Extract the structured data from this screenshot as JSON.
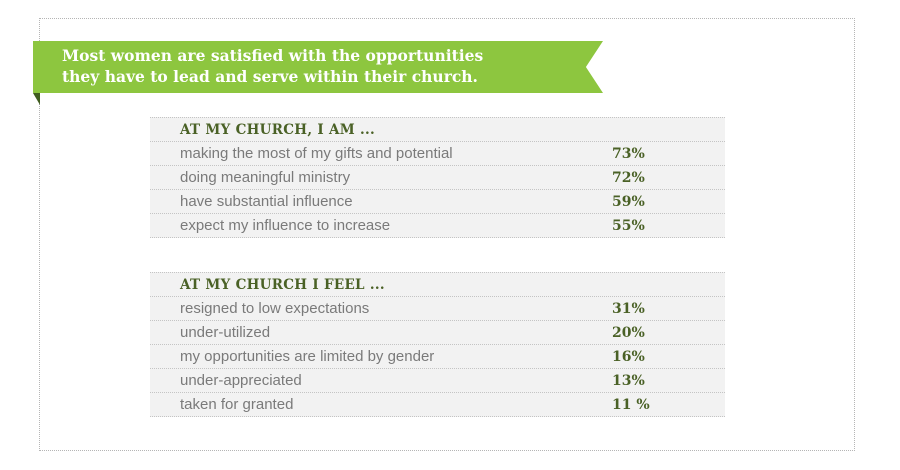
{
  "banner": {
    "text": "Most women are satisfied with the opportunities\nthey have to lead and serve within their church.",
    "color": "#8dc63f"
  },
  "chart_data": {
    "type": "table",
    "accent_color": "#4a6126",
    "tables": [
      {
        "header": "AT MY CHURCH, I AM ...",
        "rows": [
          {
            "label": "making the most of my gifts and potential",
            "value": "73%"
          },
          {
            "label": "doing meaningful ministry",
            "value": "72%"
          },
          {
            "label": "have substantial influence",
            "value": "59%"
          },
          {
            "label": "expect my influence to increase",
            "value": "55%"
          }
        ]
      },
      {
        "header": "AT MY CHURCH I FEEL ...",
        "rows": [
          {
            "label": "resigned to low expectations",
            "value": "31%"
          },
          {
            "label": "under-utilized",
            "value": "20%"
          },
          {
            "label": "my opportunities are limited by gender",
            "value": "16%"
          },
          {
            "label": "under-appreciated",
            "value": "13%"
          },
          {
            "label": "taken for granted",
            "value": "11 %"
          }
        ]
      }
    ]
  }
}
